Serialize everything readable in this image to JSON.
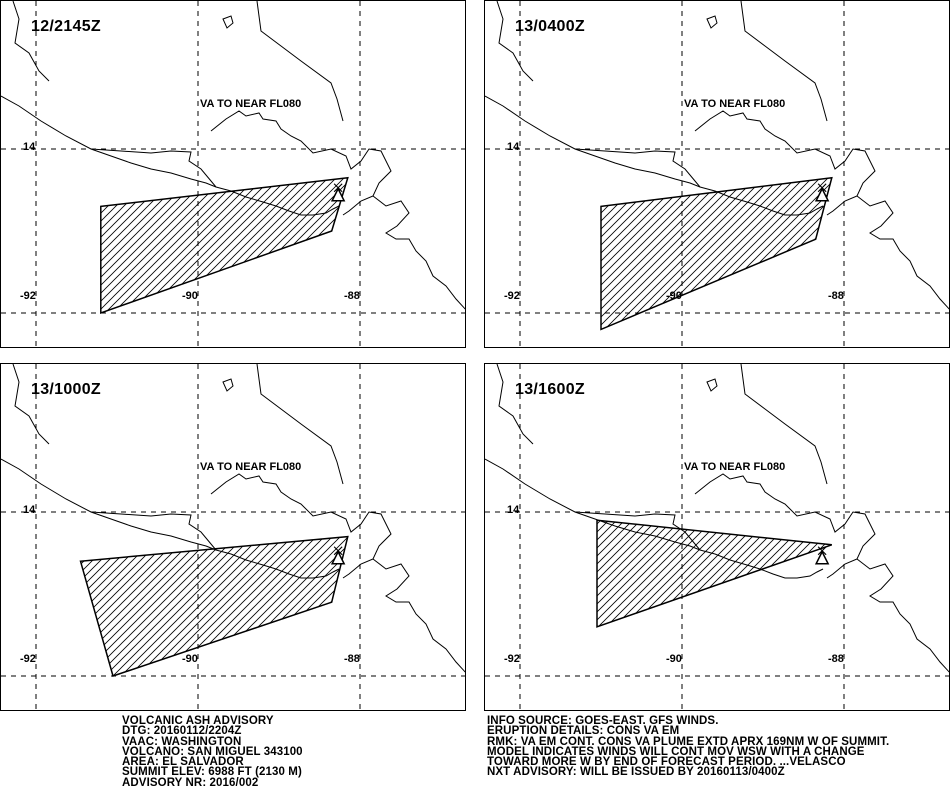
{
  "panels": [
    {
      "time": "12/2145Z",
      "level": "VA TO NEAR FL080",
      "lat_label": "14",
      "lon_labels": [
        "-92",
        "-90",
        "-88"
      ],
      "polygon": [
        [
          -91.2,
          13.3
        ],
        [
          -88.15,
          13.65
        ],
        [
          -88.35,
          13.0
        ],
        [
          -91.2,
          12.0
        ]
      ]
    },
    {
      "time": "13/0400Z",
      "level": "VA TO NEAR FL080",
      "lat_label": "14",
      "lon_labels": [
        "-92",
        "-90",
        "-88"
      ],
      "polygon": [
        [
          -91.0,
          13.3
        ],
        [
          -88.15,
          13.65
        ],
        [
          -88.35,
          12.9
        ],
        [
          -91.0,
          11.8
        ]
      ]
    },
    {
      "time": "13/1000Z",
      "level": "VA TO NEAR FL080",
      "lat_label": "14",
      "lon_labels": [
        "-92",
        "-90",
        "-88"
      ],
      "polygon": [
        [
          -91.45,
          13.4
        ],
        [
          -88.15,
          13.7
        ],
        [
          -88.35,
          12.9
        ],
        [
          -91.05,
          12.0
        ]
      ]
    },
    {
      "time": "13/1600Z",
      "level": "VA TO NEAR FL080",
      "lat_label": "14",
      "lon_labels": [
        "-92",
        "-90",
        "-88"
      ],
      "polygon": [
        [
          -91.05,
          13.9
        ],
        [
          -88.15,
          13.6
        ],
        [
          -91.05,
          12.6
        ]
      ]
    }
  ],
  "volcano": {
    "lon": -88.27,
    "lat": 13.43
  },
  "footer_left": [
    "VOLCANIC ASH ADVISORY",
    "DTG: 20160112/2204Z",
    "VAAC: WASHINGTON",
    "VOLCANO: SAN MIGUEL 343100",
    "AREA: EL SALVADOR",
    "SUMMIT ELEV: 6988 FT (2130 M)",
    "ADVISORY NR: 2016/002"
  ],
  "footer_right": [
    "INFO SOURCE: GOES-EAST. GFS WINDS.",
    "ERUPTION DETAILS: CONS VA EM",
    "RMK: VA EM CONT. CONS VA PLUME EXTD APRX 169NM W OF SUMMIT.",
    "MODEL INDICATES WINDS WILL CONT MOV WSW WITH A CHANGE",
    "TOWARD MORE W BY END OF FORECAST PERIOD. ...VELASCO",
    "NXT ADVISORY: WILL BE ISSUED BY 20160113/0400Z"
  ]
}
